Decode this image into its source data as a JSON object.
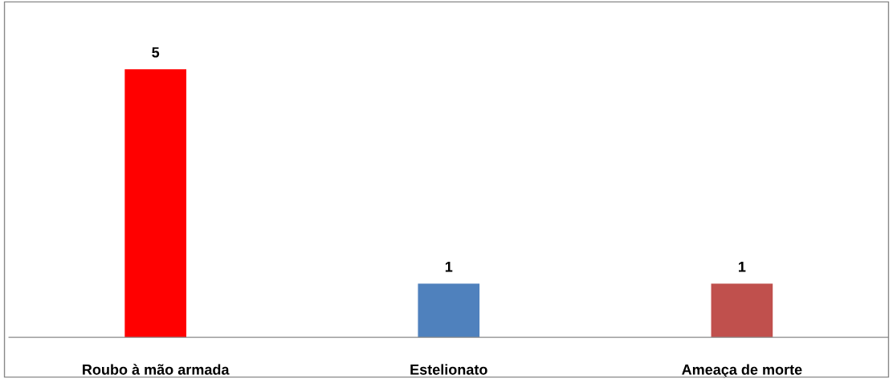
{
  "chart_data": {
    "type": "bar",
    "categories": [
      "Roubo à mão armada",
      "Estelionato",
      "Ameaça de morte"
    ],
    "values": [
      5,
      1,
      1
    ],
    "colors": [
      "#ff0000",
      "#4f81bd",
      "#c0504d"
    ],
    "data_labels": true
  }
}
